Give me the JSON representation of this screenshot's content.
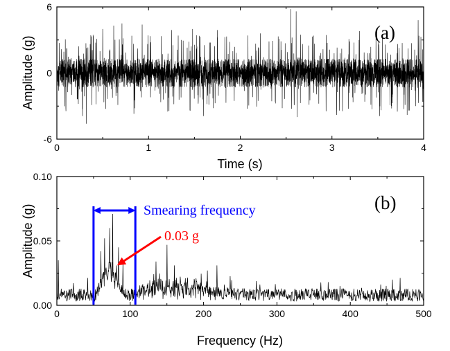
{
  "chart_data": [
    {
      "type": "line",
      "panel_label": "(a)",
      "xlabel": "Time (s)",
      "ylabel": "Amplitude (g)",
      "xlim": [
        0,
        4
      ],
      "ylim": [
        -6,
        6
      ],
      "x_ticks": [
        0,
        1,
        2,
        3,
        4
      ],
      "x_tick_labels": [
        "0",
        "1",
        "2",
        "3",
        "4"
      ],
      "y_ticks": [
        -6,
        0,
        6
      ],
      "y_tick_labels": [
        "-6",
        "0",
        "6"
      ],
      "grid": false,
      "series": [
        {
          "color": "#000000",
          "samples": 4000,
          "typical_envelope": [
            -1.3,
            1.3
          ],
          "frequent_peaks": [
            -3.5,
            3.5
          ],
          "max": 5.8,
          "min": -4.6,
          "peaks": [
            {
              "x": 0.5,
              "y": 4.0
            },
            {
              "x": 0.62,
              "y": 4.3
            },
            {
              "x": 0.71,
              "y": 4.5
            },
            {
              "x": 0.84,
              "y": -3.7
            },
            {
              "x": 0.93,
              "y": 4.4
            },
            {
              "x": 1.25,
              "y": 3.9
            },
            {
              "x": 1.48,
              "y": 4.0
            },
            {
              "x": 1.75,
              "y": 3.9
            },
            {
              "x": 2.22,
              "y": 3.6
            },
            {
              "x": 2.55,
              "y": 5.8
            },
            {
              "x": 2.61,
              "y": 5.6
            },
            {
              "x": 3.3,
              "y": 3.8
            },
            {
              "x": 0.28,
              "y": -3.9
            },
            {
              "x": 0.32,
              "y": -4.6
            },
            {
              "x": 1.6,
              "y": -3.9
            },
            {
              "x": 2.62,
              "y": -4.0
            },
            {
              "x": 3.05,
              "y": -3.8
            },
            {
              "x": 3.52,
              "y": -3.9
            },
            {
              "x": 3.82,
              "y": -3.8
            },
            {
              "x": 3.94,
              "y": 4.8
            }
          ]
        }
      ]
    },
    {
      "type": "line",
      "panel_label": "(b)",
      "xlabel": "Frequency (Hz)",
      "ylabel": "Amplitude (g)",
      "xlim": [
        0,
        500
      ],
      "ylim": [
        0,
        0.1
      ],
      "x_ticks": [
        0,
        100,
        200,
        300,
        400,
        500
      ],
      "x_tick_labels": [
        "0",
        "100",
        "200",
        "300",
        "400",
        "500"
      ],
      "y_ticks": [
        0,
        0.05,
        0.1
      ],
      "y_tick_labels": [
        "0.00",
        "0.05",
        "0.10"
      ],
      "grid": false,
      "series": [
        {
          "color": "#000000",
          "samples": 1000,
          "baseline_envelope": [
            0.003,
            0.013
          ],
          "max": 0.071,
          "peaks": [
            {
              "x": 2,
              "y": 0.035
            },
            {
              "x": 60,
              "y": 0.042
            },
            {
              "x": 65,
              "y": 0.052
            },
            {
              "x": 72,
              "y": 0.06
            },
            {
              "x": 76,
              "y": 0.071
            },
            {
              "x": 84,
              "y": 0.045
            },
            {
              "x": 90,
              "y": 0.033
            },
            {
              "x": 150,
              "y": 0.047
            },
            {
              "x": 135,
              "y": 0.034
            },
            {
              "x": 160,
              "y": 0.031
            },
            {
              "x": 205,
              "y": 0.027
            },
            {
              "x": 218,
              "y": 0.031
            }
          ]
        }
      ],
      "band": {
        "from": 50,
        "to": 107,
        "color": "#0000ff"
      },
      "band_label": "Smearing frequency",
      "annotations": [
        {
          "text": "0.03 g",
          "color": "#ff0000",
          "arrow_to": {
            "x": 80,
            "y": 0.03
          }
        }
      ]
    }
  ]
}
